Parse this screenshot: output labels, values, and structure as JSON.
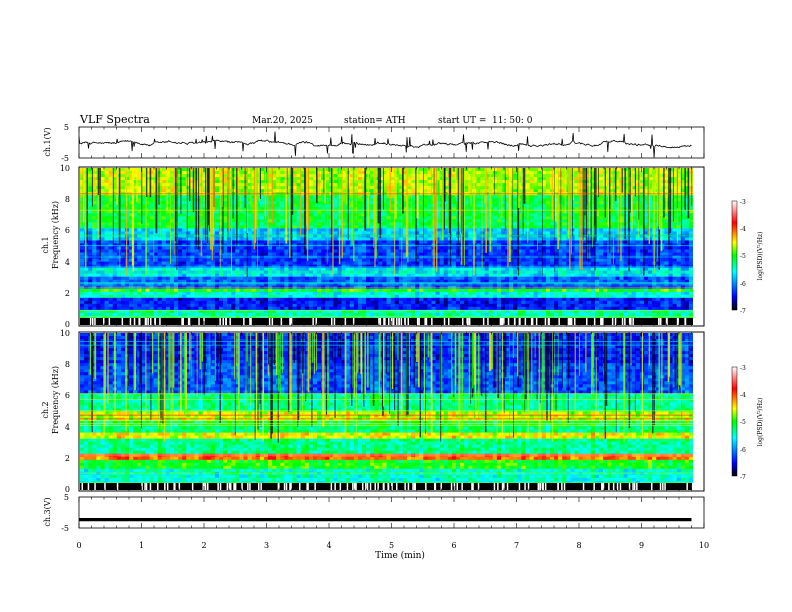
{
  "header": {
    "title": "VLF Spectra",
    "date": "Mar.20, 2025",
    "station": "station= ATH",
    "start": "start UT =",
    "start_time": "11: 50: 0"
  },
  "chart_data": [
    {
      "id": "ch1-voltage",
      "type": "line",
      "ylabel": "ch.1(V)",
      "ylim": [
        -5,
        5
      ],
      "yticks": [
        "5",
        "-5"
      ],
      "xlim": [
        0,
        9.8
      ],
      "note_values": "irregular waveform, roughly -1.5 to 0.5 V with sharp spikes"
    },
    {
      "id": "ch1-spectrogram",
      "type": "heatmap",
      "ylabel_top": "ch.1",
      "ylabel": "Frequency (kHz)",
      "ylim": [
        0,
        10
      ],
      "yticks": [
        "0",
        "2",
        "4",
        "6",
        "8",
        "10"
      ],
      "xlim": [
        0,
        9.8
      ],
      "colorbar": {
        "label": "log(PSD)(V²/Hz)",
        "range": [
          -7,
          -3
        ],
        "ticks": [
          "-3",
          "-4",
          "-5",
          "-6",
          "-7"
        ]
      }
    },
    {
      "id": "ch2-spectrogram",
      "type": "heatmap",
      "ylabel_top": "ch.2",
      "ylabel": "Frequency (kHz)",
      "ylim": [
        0,
        10
      ],
      "yticks": [
        "0",
        "2",
        "4",
        "6",
        "8",
        "10"
      ],
      "xlim": [
        0,
        9.8
      ],
      "colorbar": {
        "label": "log(PSD)(V²/Hz)",
        "range": [
          -7,
          -3
        ],
        "ticks": [
          "-3",
          "-4",
          "-5",
          "-6",
          "-7"
        ]
      }
    },
    {
      "id": "ch3-voltage",
      "type": "line",
      "ylabel": "ch.3(V)",
      "ylim": [
        -5,
        5
      ],
      "yticks": [
        "5",
        "-5"
      ],
      "xlim": [
        0,
        9.8
      ],
      "constant_value": -2.3
    }
  ],
  "xaxis": {
    "label": "Time (min)",
    "range": [
      0,
      10
    ],
    "ticks": [
      "0",
      "1",
      "2",
      "3",
      "4",
      "5",
      "6",
      "7",
      "8",
      "9",
      "10"
    ]
  },
  "colors": {
    "line": "#000000",
    "colormap": [
      "#000000",
      "#0000ff",
      "#00ffff",
      "#00ff00",
      "#ffff00",
      "#ff0000",
      "#ffffff"
    ]
  }
}
